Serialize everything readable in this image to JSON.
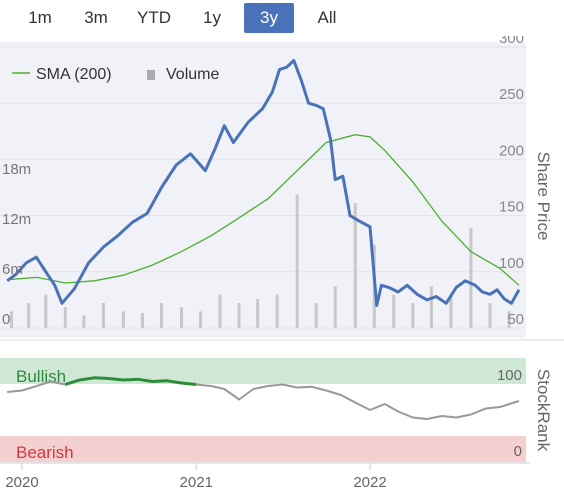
{
  "range_selector": {
    "buttons": [
      "1m",
      "3m",
      "YTD",
      "1y",
      "3y",
      "All"
    ],
    "active": "3y",
    "active_color": "#4a72b8"
  },
  "colors": {
    "price_line": "#4a72b8",
    "sma_line": "#4caf2f",
    "volume_bar": "#c8c8c8",
    "plot_band": "#f0f2f8",
    "bullish_band": "#cfe8d6",
    "bearish_band": "#f5d0d0",
    "bullish_text": "#2e8b3a",
    "bearish_text": "#d9363e",
    "stockrank_line": "#999999",
    "stockrank_bullish_line": "#2e8b3a"
  },
  "chart_data": [
    {
      "type": "line",
      "legend": {
        "position": "top-left",
        "sma_label": "SMA (200)",
        "volume_label": "Volume"
      },
      "x_labels": [
        "2020",
        "2021",
        "2022"
      ],
      "price_axis": {
        "label": "Share Price",
        "ticks": [
          "300",
          "250",
          "200",
          "150",
          "100",
          "50"
        ],
        "ylim": [
          50,
          300
        ]
      },
      "volume_axis": {
        "ticks": [
          "18m",
          "12m",
          "6m",
          "0"
        ],
        "ylim": [
          0,
          24
        ]
      },
      "series": [
        {
          "name": "Share Price",
          "x": [
            "2019-12-01",
            "2019-12-20",
            "2020-01-10",
            "2020-01-31",
            "2020-02-20",
            "2020-03-10",
            "2020-03-25",
            "2020-04-20",
            "2020-05-20",
            "2020-06-20",
            "2020-07-20",
            "2020-08-20",
            "2020-09-20",
            "2020-10-20",
            "2020-11-20",
            "2020-12-20",
            "2021-01-20",
            "2021-02-10",
            "2021-03-01",
            "2021-03-20",
            "2021-04-20",
            "2021-05-20",
            "2021-06-10",
            "2021-06-25",
            "2021-07-10",
            "2021-07-25",
            "2021-08-10",
            "2021-08-25",
            "2021-09-10",
            "2021-09-25",
            "2021-10-10",
            "2021-10-20",
            "2021-11-05",
            "2021-11-20",
            "2021-12-10",
            "2022-01-01",
            "2022-01-15",
            "2022-01-25",
            "2022-02-10",
            "2022-03-01",
            "2022-03-20",
            "2022-04-10",
            "2022-05-01",
            "2022-05-20",
            "2022-06-10",
            "2022-07-01",
            "2022-07-20",
            "2022-08-10",
            "2022-08-25",
            "2022-09-10",
            "2022-09-25",
            "2022-10-10",
            "2022-10-25",
            "2022-11-10"
          ],
          "values": [
            92,
            98,
            108,
            113,
            100,
            88,
            72,
            85,
            108,
            122,
            132,
            144,
            152,
            175,
            195,
            205,
            190,
            210,
            230,
            215,
            233,
            245,
            260,
            280,
            282,
            288,
            270,
            250,
            248,
            245,
            218,
            182,
            185,
            150,
            145,
            140,
            70,
            88,
            86,
            82,
            88,
            80,
            75,
            78,
            72,
            86,
            92,
            88,
            82,
            80,
            84,
            76,
            72,
            84
          ]
        },
        {
          "name": "SMA (200)",
          "x": [
            "2019-12-01",
            "2020-02-01",
            "2020-04-01",
            "2020-06-01",
            "2020-08-01",
            "2020-10-01",
            "2020-12-01",
            "2021-02-01",
            "2021-04-01",
            "2021-06-01",
            "2021-08-01",
            "2021-10-01",
            "2021-12-01",
            "2022-01-01",
            "2022-02-01",
            "2022-04-01",
            "2022-06-01",
            "2022-08-01",
            "2022-10-01",
            "2022-11-10"
          ],
          "values": [
            93,
            95,
            90,
            92,
            97,
            106,
            118,
            132,
            148,
            165,
            190,
            215,
            222,
            220,
            208,
            180,
            145,
            118,
            103,
            88
          ]
        },
        {
          "name": "Volume",
          "unit": "millions",
          "x": [
            "2019-12-10",
            "2020-01-15",
            "2020-02-20",
            "2020-04-01",
            "2020-05-10",
            "2020-06-20",
            "2020-08-01",
            "2020-09-10",
            "2020-10-20",
            "2020-12-01",
            "2021-01-10",
            "2021-02-20",
            "2021-04-01",
            "2021-05-10",
            "2021-06-20",
            "2021-08-01",
            "2021-09-10",
            "2021-10-20",
            "2021-12-01",
            "2022-01-10",
            "2022-02-20",
            "2022-04-01",
            "2022-05-10",
            "2022-06-20",
            "2022-08-01",
            "2022-09-10",
            "2022-10-20"
          ],
          "values": [
            2,
            3,
            4,
            2.5,
            1.5,
            3,
            2,
            1.8,
            3,
            2.5,
            2,
            4,
            3,
            3.5,
            4,
            16,
            3,
            5,
            15,
            10,
            4,
            3,
            5,
            4,
            12,
            3,
            2
          ]
        }
      ]
    },
    {
      "type": "line",
      "label": "StockRank",
      "bands": {
        "bullish": "Bullish",
        "bearish": "Bearish"
      },
      "ticks": [
        "100",
        "0"
      ],
      "ylim": [
        0,
        100
      ],
      "series": [
        {
          "name": "StockRank",
          "x": [
            "2019-12-01",
            "2020-01-01",
            "2020-02-01",
            "2020-03-01",
            "2020-04-01",
            "2020-05-01",
            "2020-06-01",
            "2020-07-01",
            "2020-08-01",
            "2020-09-01",
            "2020-10-01",
            "2020-11-01",
            "2020-12-01",
            "2021-01-01",
            "2021-02-01",
            "2021-03-01",
            "2021-04-01",
            "2021-05-01",
            "2021-06-01",
            "2021-07-01",
            "2021-08-01",
            "2021-09-01",
            "2021-10-01",
            "2021-11-01",
            "2021-12-01",
            "2022-01-01",
            "2022-02-01",
            "2022-03-01",
            "2022-04-01",
            "2022-05-01",
            "2022-06-01",
            "2022-07-01",
            "2022-08-01",
            "2022-09-01",
            "2022-10-01",
            "2022-11-10"
          ],
          "values": [
            72,
            74,
            80,
            86,
            82,
            88,
            91,
            90,
            88,
            89,
            86,
            87,
            84,
            82,
            80,
            76,
            62,
            76,
            80,
            82,
            78,
            79,
            74,
            68,
            58,
            48,
            56,
            46,
            38,
            36,
            40,
            38,
            42,
            50,
            52,
            60
          ]
        }
      ]
    }
  ]
}
